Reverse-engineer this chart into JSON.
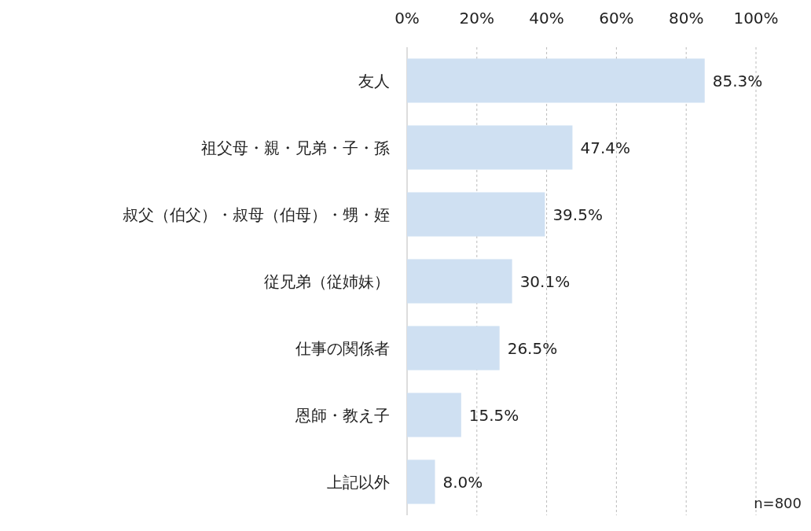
{
  "chart_data": {
    "type": "bar",
    "orientation": "horizontal",
    "categories": [
      "友人",
      "祖父母・親・兄弟・子・孫",
      "叔父（伯父）・叔母（伯母）・甥・姪",
      "従兄弟（従姉妹）",
      "仕事の関係者",
      "恩師・教え子",
      "上記以外"
    ],
    "values": [
      85.3,
      47.4,
      39.5,
      30.1,
      26.5,
      15.5,
      8.0
    ],
    "value_labels": [
      "85.3%",
      "47.4%",
      "39.5%",
      "30.1%",
      "26.5%",
      "15.5%",
      "8.0%"
    ],
    "color": "#cfe0f2",
    "xlim": [
      0,
      100
    ],
    "xticks": [
      {
        "value": 0,
        "label": "0%"
      },
      {
        "value": 20,
        "label": "20%"
      },
      {
        "value": 40,
        "label": "40%"
      },
      {
        "value": 60,
        "label": "60%"
      },
      {
        "value": 80,
        "label": "80%"
      },
      {
        "value": 100,
        "label": "100%"
      }
    ],
    "grid": "x",
    "annotations": [
      "n=800"
    ]
  }
}
